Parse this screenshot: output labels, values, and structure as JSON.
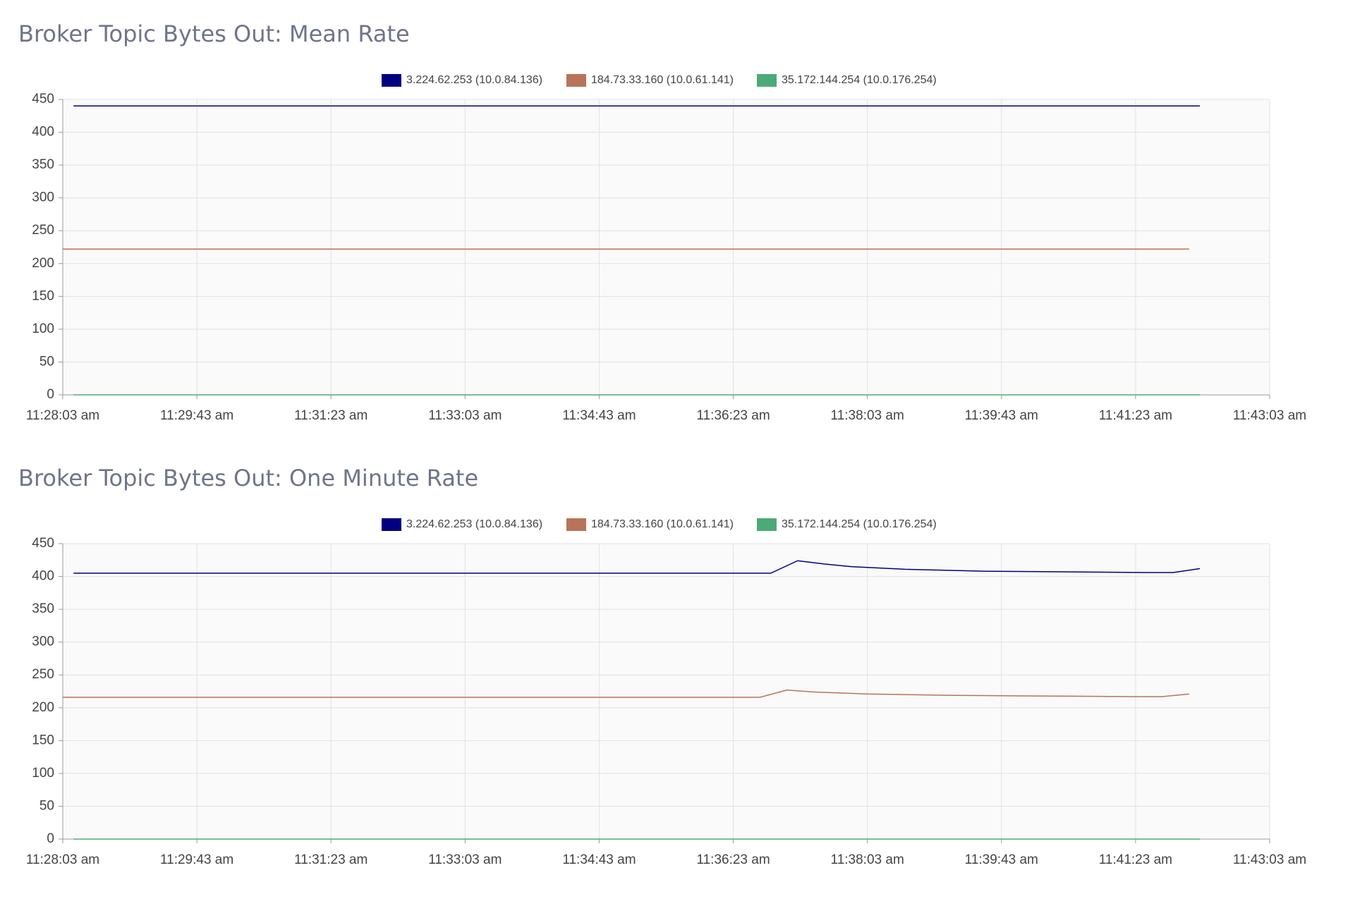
{
  "chart_data": [
    {
      "type": "line",
      "title": "Broker Topic Bytes Out: Mean Rate",
      "xlim": [
        41283,
        42183
      ],
      "xticks": [
        {
          "value": 41283,
          "label": "11:28:03 am"
        },
        {
          "value": 41383,
          "label": "11:29:43 am"
        },
        {
          "value": 41483,
          "label": "11:31:23 am"
        },
        {
          "value": 41583,
          "label": "11:33:03 am"
        },
        {
          "value": 41683,
          "label": "11:34:43 am"
        },
        {
          "value": 41783,
          "label": "11:36:23 am"
        },
        {
          "value": 41883,
          "label": "11:38:03 am"
        },
        {
          "value": 41983,
          "label": "11:39:43 am"
        },
        {
          "value": 42083,
          "label": "11:41:23 am"
        },
        {
          "value": 42183,
          "label": "11:43:03 am"
        }
      ],
      "ylim": [
        0,
        450
      ],
      "yticks": [
        0,
        50,
        100,
        150,
        200,
        250,
        300,
        350,
        400,
        450
      ],
      "grid": true,
      "legend": "top",
      "series": [
        {
          "name": "3.224.62.253 (10.0.84.136)",
          "color": "#000080",
          "x": [
            41291,
            42131
          ],
          "values": [
            440,
            440
          ]
        },
        {
          "name": "184.73.33.160 (10.0.61.141)",
          "color": "#b8735a",
          "x": [
            41283,
            42123
          ],
          "values": [
            222,
            222
          ]
        },
        {
          "name": "35.172.144.254 (10.0.176.254)",
          "color": "#4caa78",
          "x": [
            41291,
            42131
          ],
          "values": [
            0,
            0
          ]
        }
      ]
    },
    {
      "type": "line",
      "title": "Broker Topic Bytes Out: One Minute Rate",
      "xlim": [
        41283,
        42183
      ],
      "xticks": [
        {
          "value": 41283,
          "label": "11:28:03 am"
        },
        {
          "value": 41383,
          "label": "11:29:43 am"
        },
        {
          "value": 41483,
          "label": "11:31:23 am"
        },
        {
          "value": 41583,
          "label": "11:33:03 am"
        },
        {
          "value": 41683,
          "label": "11:34:43 am"
        },
        {
          "value": 41783,
          "label": "11:36:23 am"
        },
        {
          "value": 41883,
          "label": "11:38:03 am"
        },
        {
          "value": 41983,
          "label": "11:39:43 am"
        },
        {
          "value": 42083,
          "label": "11:41:23 am"
        },
        {
          "value": 42183,
          "label": "11:43:03 am"
        }
      ],
      "ylim": [
        0,
        450
      ],
      "yticks": [
        0,
        50,
        100,
        150,
        200,
        250,
        300,
        350,
        400,
        450
      ],
      "grid": true,
      "legend": "top",
      "series": [
        {
          "name": "3.224.62.253 (10.0.84.136)",
          "color": "#000080",
          "x": [
            41291,
            41811,
            41831,
            41851,
            41871,
            41911,
            41971,
            42031,
            42091,
            42111,
            42131
          ],
          "values": [
            405,
            405,
            424,
            419,
            415,
            411,
            408,
            407,
            406,
            406,
            412
          ]
        },
        {
          "name": "184.73.33.160 (10.0.61.141)",
          "color": "#b8735a",
          "x": [
            41283,
            41803,
            41823,
            41843,
            41883,
            41943,
            42003,
            42083,
            42103,
            42123
          ],
          "values": [
            216,
            216,
            227,
            224,
            221,
            219,
            218,
            217,
            217,
            221
          ]
        },
        {
          "name": "35.172.144.254 (10.0.176.254)",
          "color": "#4caa78",
          "x": [
            41291,
            42131
          ],
          "values": [
            0,
            0
          ]
        }
      ]
    }
  ]
}
